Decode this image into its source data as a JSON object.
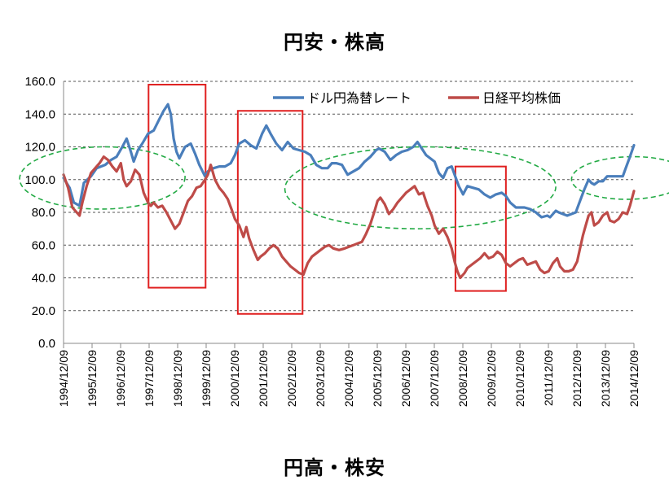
{
  "chart_data": {
    "type": "line",
    "title": "円安・株高",
    "subtitle_bottom": "円高・株安",
    "ylim": [
      0,
      160
    ],
    "y_ticks": [
      "0.0",
      "20.0",
      "40.0",
      "60.0",
      "80.0",
      "100.0",
      "120.0",
      "140.0",
      "160.0"
    ],
    "x_ticks": [
      "1994/12/09",
      "1995/12/09",
      "1996/12/09",
      "1997/12/09",
      "1998/12/09",
      "1999/12/09",
      "2000/12/09",
      "2001/12/09",
      "2002/12/09",
      "2003/12/09",
      "2004/12/09",
      "2005/12/09",
      "2006/12/09",
      "2007/12/09",
      "2008/12/09",
      "2009/12/09",
      "2010/12/09",
      "2011/12/09",
      "2012/12/09",
      "2013/12/09",
      "2014/12/09"
    ],
    "grid": true,
    "legend_position": "top-right",
    "series": [
      {
        "name": "ドル円為替レート",
        "color": "#4a7ebb",
        "points": [
          [
            1994.94,
            101
          ],
          [
            1995.15,
            95
          ],
          [
            1995.3,
            86
          ],
          [
            1995.5,
            84
          ],
          [
            1995.65,
            98
          ],
          [
            1995.9,
            102
          ],
          [
            1996.1,
            107
          ],
          [
            1996.4,
            109
          ],
          [
            1996.6,
            112
          ],
          [
            1996.8,
            114
          ],
          [
            1997.0,
            120
          ],
          [
            1997.15,
            125
          ],
          [
            1997.3,
            117
          ],
          [
            1997.4,
            111
          ],
          [
            1997.55,
            118
          ],
          [
            1997.7,
            122
          ],
          [
            1997.9,
            128
          ],
          [
            1998.1,
            130
          ],
          [
            1998.3,
            137
          ],
          [
            1998.45,
            142
          ],
          [
            1998.6,
            146
          ],
          [
            1998.7,
            140
          ],
          [
            1998.8,
            125
          ],
          [
            1998.9,
            117
          ],
          [
            1999.0,
            113
          ],
          [
            1999.2,
            120
          ],
          [
            1999.4,
            122
          ],
          [
            1999.55,
            116
          ],
          [
            1999.7,
            109
          ],
          [
            1999.9,
            102
          ],
          [
            2000.0,
            105
          ],
          [
            2000.2,
            107
          ],
          [
            2000.4,
            108
          ],
          [
            2000.6,
            108
          ],
          [
            2000.8,
            110
          ],
          [
            2000.95,
            115
          ],
          [
            2001.1,
            122
          ],
          [
            2001.3,
            124
          ],
          [
            2001.5,
            121
          ],
          [
            2001.7,
            119
          ],
          [
            2001.9,
            128
          ],
          [
            2002.05,
            133
          ],
          [
            2002.2,
            128
          ],
          [
            2002.4,
            122
          ],
          [
            2002.6,
            118
          ],
          [
            2002.8,
            123
          ],
          [
            2003.0,
            119
          ],
          [
            2003.2,
            118
          ],
          [
            2003.4,
            117
          ],
          [
            2003.6,
            115
          ],
          [
            2003.8,
            109
          ],
          [
            2004.0,
            107
          ],
          [
            2004.2,
            107
          ],
          [
            2004.35,
            110
          ],
          [
            2004.5,
            110
          ],
          [
            2004.7,
            109
          ],
          [
            2004.9,
            103
          ],
          [
            2005.1,
            105
          ],
          [
            2005.3,
            107
          ],
          [
            2005.5,
            111
          ],
          [
            2005.7,
            114
          ],
          [
            2005.9,
            118
          ],
          [
            2006.0,
            119
          ],
          [
            2006.2,
            117
          ],
          [
            2006.4,
            112
          ],
          [
            2006.6,
            115
          ],
          [
            2006.8,
            117
          ],
          [
            2007.0,
            118
          ],
          [
            2007.2,
            120
          ],
          [
            2007.35,
            123
          ],
          [
            2007.5,
            119
          ],
          [
            2007.65,
            115
          ],
          [
            2007.8,
            113
          ],
          [
            2007.95,
            111
          ],
          [
            2008.1,
            104
          ],
          [
            2008.25,
            101
          ],
          [
            2008.4,
            107
          ],
          [
            2008.55,
            108
          ],
          [
            2008.65,
            103
          ],
          [
            2008.8,
            96
          ],
          [
            2008.95,
            91
          ],
          [
            2009.1,
            96
          ],
          [
            2009.3,
            95
          ],
          [
            2009.5,
            94
          ],
          [
            2009.7,
            91
          ],
          [
            2009.9,
            89
          ],
          [
            2010.1,
            91
          ],
          [
            2010.3,
            92
          ],
          [
            2010.45,
            90
          ],
          [
            2010.6,
            86
          ],
          [
            2010.8,
            83
          ],
          [
            2010.95,
            83
          ],
          [
            2011.1,
            83
          ],
          [
            2011.3,
            82
          ],
          [
            2011.5,
            80
          ],
          [
            2011.7,
            77
          ],
          [
            2011.9,
            78
          ],
          [
            2012.0,
            77
          ],
          [
            2012.2,
            81
          ],
          [
            2012.3,
            80
          ],
          [
            2012.45,
            79
          ],
          [
            2012.6,
            78
          ],
          [
            2012.75,
            79
          ],
          [
            2012.9,
            80
          ],
          [
            2013.05,
            87
          ],
          [
            2013.2,
            94
          ],
          [
            2013.35,
            100
          ],
          [
            2013.45,
            98
          ],
          [
            2013.55,
            97
          ],
          [
            2013.7,
            99
          ],
          [
            2013.85,
            99
          ],
          [
            2014.0,
            102
          ],
          [
            2014.2,
            102
          ],
          [
            2014.4,
            102
          ],
          [
            2014.55,
            102
          ],
          [
            2014.65,
            107
          ],
          [
            2014.8,
            114
          ],
          [
            2014.94,
            121
          ]
        ]
      },
      {
        "name": "日経平均株価",
        "color": "#be4b48",
        "points": [
          [
            1994.94,
            103
          ],
          [
            1995.1,
            95
          ],
          [
            1995.25,
            83
          ],
          [
            1995.4,
            80
          ],
          [
            1995.5,
            78
          ],
          [
            1995.6,
            86
          ],
          [
            1995.75,
            96
          ],
          [
            1995.9,
            104
          ],
          [
            1996.05,
            107
          ],
          [
            1996.2,
            110
          ],
          [
            1996.35,
            114
          ],
          [
            1996.5,
            112
          ],
          [
            1996.65,
            108
          ],
          [
            1996.8,
            105
          ],
          [
            1996.95,
            110
          ],
          [
            1997.05,
            100
          ],
          [
            1997.15,
            96
          ],
          [
            1997.3,
            99
          ],
          [
            1997.45,
            106
          ],
          [
            1997.6,
            103
          ],
          [
            1997.75,
            92
          ],
          [
            1997.9,
            86
          ],
          [
            1998.0,
            84
          ],
          [
            1998.1,
            86
          ],
          [
            1998.25,
            83
          ],
          [
            1998.4,
            84
          ],
          [
            1998.55,
            80
          ],
          [
            1998.7,
            75
          ],
          [
            1998.85,
            70
          ],
          [
            1999.0,
            73
          ],
          [
            1999.15,
            80
          ],
          [
            1999.3,
            87
          ],
          [
            1999.45,
            90
          ],
          [
            1999.6,
            95
          ],
          [
            1999.75,
            96
          ],
          [
            1999.9,
            100
          ],
          [
            2000.0,
            103
          ],
          [
            2000.1,
            109
          ],
          [
            2000.25,
            100
          ],
          [
            2000.4,
            95
          ],
          [
            2000.55,
            92
          ],
          [
            2000.7,
            88
          ],
          [
            2000.85,
            81
          ],
          [
            2000.95,
            76
          ],
          [
            2001.1,
            72
          ],
          [
            2001.25,
            65
          ],
          [
            2001.35,
            71
          ],
          [
            2001.45,
            64
          ],
          [
            2001.6,
            57
          ],
          [
            2001.75,
            51
          ],
          [
            2001.85,
            53
          ],
          [
            2002.0,
            55
          ],
          [
            2002.15,
            58
          ],
          [
            2002.3,
            60
          ],
          [
            2002.45,
            58
          ],
          [
            2002.6,
            53
          ],
          [
            2002.75,
            50
          ],
          [
            2002.9,
            47
          ],
          [
            2003.05,
            45
          ],
          [
            2003.2,
            43
          ],
          [
            2003.35,
            42
          ],
          [
            2003.5,
            49
          ],
          [
            2003.65,
            53
          ],
          [
            2003.8,
            55
          ],
          [
            2003.95,
            57
          ],
          [
            2004.1,
            59
          ],
          [
            2004.25,
            60
          ],
          [
            2004.4,
            58
          ],
          [
            2004.6,
            57
          ],
          [
            2004.8,
            58
          ],
          [
            2004.95,
            59
          ],
          [
            2005.1,
            60
          ],
          [
            2005.25,
            61
          ],
          [
            2005.4,
            62
          ],
          [
            2005.55,
            67
          ],
          [
            2005.7,
            73
          ],
          [
            2005.85,
            81
          ],
          [
            2005.95,
            87
          ],
          [
            2006.05,
            89
          ],
          [
            2006.2,
            85
          ],
          [
            2006.35,
            79
          ],
          [
            2006.5,
            82
          ],
          [
            2006.65,
            86
          ],
          [
            2006.8,
            89
          ],
          [
            2006.95,
            92
          ],
          [
            2007.1,
            94
          ],
          [
            2007.25,
            96
          ],
          [
            2007.4,
            91
          ],
          [
            2007.55,
            92
          ],
          [
            2007.7,
            84
          ],
          [
            2007.85,
            78
          ],
          [
            2007.95,
            72
          ],
          [
            2008.1,
            67
          ],
          [
            2008.25,
            70
          ],
          [
            2008.4,
            65
          ],
          [
            2008.55,
            58
          ],
          [
            2008.65,
            50
          ],
          [
            2008.75,
            44
          ],
          [
            2008.85,
            40
          ],
          [
            2009.0,
            43
          ],
          [
            2009.1,
            46
          ],
          [
            2009.25,
            48
          ],
          [
            2009.4,
            50
          ],
          [
            2009.55,
            52
          ],
          [
            2009.7,
            55
          ],
          [
            2009.85,
            52
          ],
          [
            2010.0,
            53
          ],
          [
            2010.15,
            56
          ],
          [
            2010.3,
            54
          ],
          [
            2010.45,
            49
          ],
          [
            2010.6,
            47
          ],
          [
            2010.75,
            49
          ],
          [
            2010.9,
            51
          ],
          [
            2011.05,
            52
          ],
          [
            2011.2,
            48
          ],
          [
            2011.35,
            49
          ],
          [
            2011.5,
            50
          ],
          [
            2011.65,
            45
          ],
          [
            2011.8,
            43
          ],
          [
            2011.95,
            44
          ],
          [
            2012.1,
            49
          ],
          [
            2012.25,
            52
          ],
          [
            2012.35,
            47
          ],
          [
            2012.5,
            44
          ],
          [
            2012.65,
            44
          ],
          [
            2012.8,
            45
          ],
          [
            2012.95,
            50
          ],
          [
            2013.05,
            58
          ],
          [
            2013.15,
            66
          ],
          [
            2013.25,
            72
          ],
          [
            2013.35,
            78
          ],
          [
            2013.45,
            80
          ],
          [
            2013.55,
            72
          ],
          [
            2013.7,
            74
          ],
          [
            2013.85,
            78
          ],
          [
            2014.0,
            80
          ],
          [
            2014.1,
            75
          ],
          [
            2014.25,
            74
          ],
          [
            2014.4,
            76
          ],
          [
            2014.55,
            80
          ],
          [
            2014.7,
            79
          ],
          [
            2014.8,
            84
          ],
          [
            2014.94,
            93
          ]
        ]
      }
    ],
    "annotations": {
      "red_boxes": [
        {
          "x0": 1997.92,
          "x1": 1999.92,
          "y0": 34,
          "y1": 158
        },
        {
          "x0": 2001.05,
          "x1": 2003.32,
          "y0": 18,
          "y1": 142
        },
        {
          "x0": 2008.68,
          "x1": 2010.45,
          "y0": 32,
          "y1": 108
        }
      ],
      "green_ellipses": [
        {
          "cx": 1996.3,
          "cy": 101,
          "rx": 2.9,
          "ry": 19,
          "angle": -0.19
        },
        {
          "cx": 2007.45,
          "cy": 95,
          "rx": 4.75,
          "ry": 25,
          "angle": -0.16
        },
        {
          "cx": 2014.8,
          "cy": 101,
          "rx": 2.05,
          "ry": 13,
          "angle": -0.45
        }
      ],
      "red_color": "#e02020",
      "green_color": "#22aa44"
    }
  }
}
